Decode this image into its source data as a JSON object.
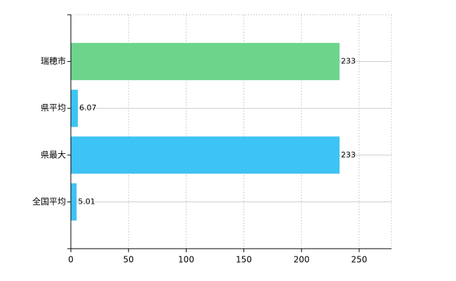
{
  "chart_data": {
    "type": "bar",
    "orientation": "horizontal",
    "categories": [
      "瑞穂市",
      "県平均",
      "県最大",
      "全国平均"
    ],
    "values": [
      233,
      6.07,
      233,
      5.01
    ],
    "colors": [
      "#6dd48c",
      "#3ec3f5",
      "#3ec3f5",
      "#3ec3f5"
    ],
    "xlim": [
      0,
      278
    ],
    "xticks": [
      0,
      50,
      100,
      150,
      200,
      250
    ],
    "grid": true
  }
}
